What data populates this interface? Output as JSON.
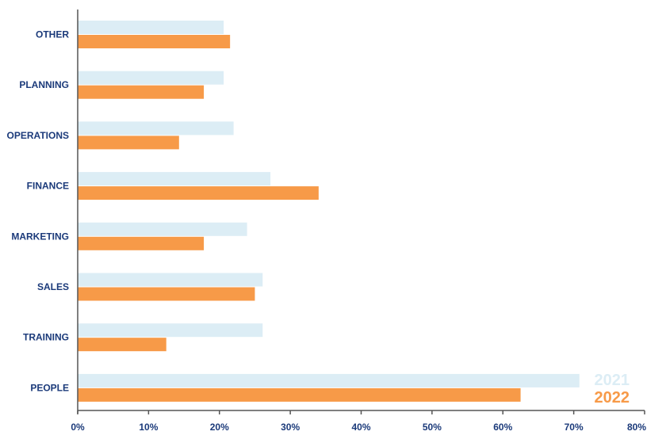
{
  "chart_data": {
    "type": "bar",
    "orientation": "horizontal",
    "categories": [
      "OTHER",
      "PLANNING",
      "OPERATIONS",
      "FINANCE",
      "MARKETING",
      "SALES",
      "TRAINING",
      "PEOPLE"
    ],
    "series": [
      {
        "name": "2021",
        "color": "#dcedf5",
        "values": [
          20.6,
          20.6,
          22.0,
          27.2,
          23.9,
          26.1,
          26.1,
          70.8
        ]
      },
      {
        "name": "2022",
        "color": "#f79a48",
        "values": [
          21.5,
          17.8,
          14.3,
          34.0,
          17.8,
          25.0,
          12.5,
          62.5
        ]
      }
    ],
    "x_ticks": [
      "0%",
      "10%",
      "20%",
      "30%",
      "40%",
      "50%",
      "60%",
      "70%",
      "80%"
    ],
    "xlim": [
      0,
      80
    ],
    "grid": false,
    "legend_position": "bottom-right",
    "title": "",
    "xlabel": "",
    "ylabel": ""
  }
}
